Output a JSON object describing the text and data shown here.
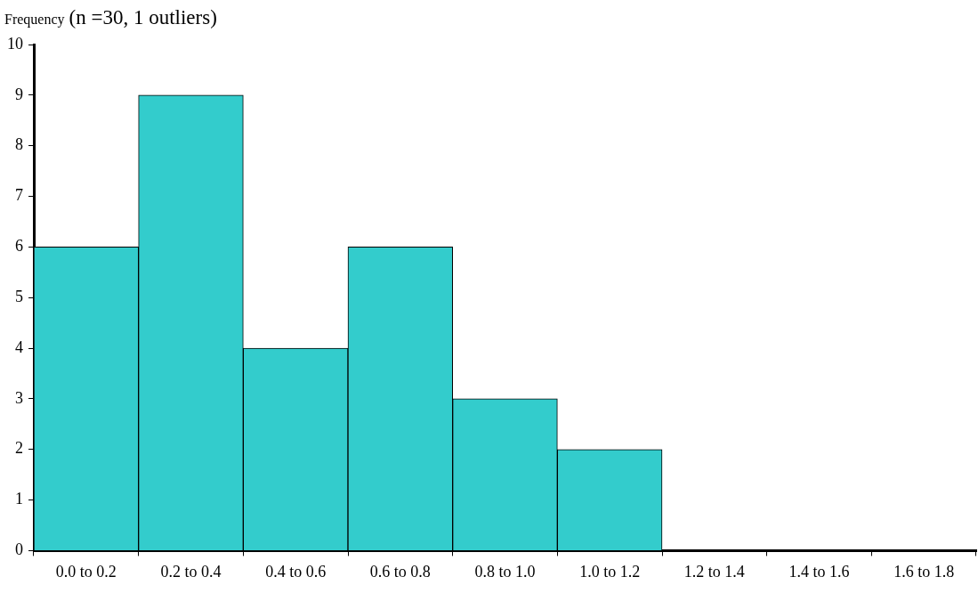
{
  "chart_data": {
    "type": "bar",
    "title": "(n =30, 1 outliers)",
    "ylabel": "Frequency",
    "categories": [
      "0.0 to 0.2",
      "0.2 to 0.4",
      "0.4 to 0.6",
      "0.6 to 0.8",
      "0.8 to 1.0",
      "1.0 to 1.2",
      "1.2 to 1.4",
      "1.4 to 1.6",
      "1.6 to 1.8"
    ],
    "values": [
      6,
      9,
      4,
      6,
      3,
      2,
      0,
      0,
      0
    ],
    "color": "#33cccc",
    "ylim": [
      0,
      10
    ],
    "yticks": [
      0,
      1,
      2,
      3,
      4,
      5,
      6,
      7,
      8,
      9,
      10
    ],
    "grid": false,
    "legend": false
  }
}
